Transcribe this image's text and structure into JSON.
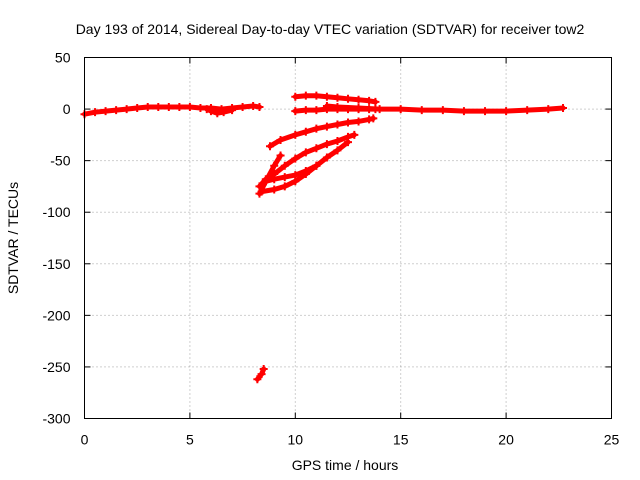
{
  "chart_data": {
    "type": "scatter",
    "title": "Day 193 of 2014, Sidereal Day-to-day VTEC variation (SDTVAR) for receiver tow2",
    "xlabel": "GPS time / hours",
    "ylabel": "SDTVAR / TECUs",
    "xlim": [
      0,
      25
    ],
    "ylim": [
      -300,
      50
    ],
    "xticks": [
      0,
      5,
      10,
      15,
      20,
      25
    ],
    "yticks": [
      -300,
      -250,
      -200,
      -150,
      -100,
      -50,
      0,
      50
    ],
    "grid": true,
    "legend": "none",
    "marker_color": "#ff0000",
    "traces": [
      {
        "x": [
          0,
          0.5,
          1.0,
          1.5,
          2.0,
          2.5,
          3.0,
          3.5,
          4.0,
          4.5,
          5.0,
          5.5,
          6.0,
          6.5,
          7.0,
          7.5,
          8.0,
          8.3
        ],
        "y": [
          -5,
          -3,
          -2,
          -1,
          0,
          1,
          2,
          2,
          2,
          2,
          2,
          1,
          1,
          0,
          1,
          2,
          3,
          2
        ]
      },
      {
        "x": [
          5.8,
          6.0,
          6.3,
          6.6,
          7.0
        ],
        "y": [
          0,
          -2,
          -4,
          -3,
          -1
        ]
      },
      {
        "x": [
          10.0,
          10.5,
          11.0,
          11.5,
          12.0,
          12.5,
          13.0,
          13.5,
          13.8
        ],
        "y": [
          12,
          13,
          13,
          12,
          11,
          10,
          9,
          8,
          7
        ]
      },
      {
        "x": [
          11.5,
          12.0,
          13.0,
          14.0,
          15.0,
          16.0,
          17.0,
          18.0,
          19.0,
          20.0,
          21.0,
          22.0,
          22.7
        ],
        "y": [
          3,
          2,
          1,
          0,
          0,
          -1,
          -1,
          -2,
          -2,
          -2,
          -1,
          0,
          1
        ]
      },
      {
        "x": [
          10.0,
          10.5,
          11.0,
          11.5,
          12.0,
          12.5,
          13.0,
          13.5,
          13.8
        ],
        "y": [
          -2,
          -1,
          -1,
          0,
          0,
          0,
          0,
          0,
          0
        ]
      },
      {
        "x": [
          8.8,
          9.3,
          10.0,
          10.5,
          11.0,
          11.5,
          12.0,
          12.5,
          13.0,
          13.5,
          13.7
        ],
        "y": [
          -36,
          -30,
          -25,
          -22,
          -19,
          -17,
          -15,
          -13,
          -12,
          -10,
          -9
        ]
      },
      {
        "x": [
          8.3,
          8.6,
          9.0,
          9.5,
          10.0,
          10.5,
          11.0,
          11.5,
          12.0,
          12.5,
          12.8
        ],
        "y": [
          -75,
          -68,
          -63,
          -55,
          -48,
          -42,
          -38,
          -34,
          -31,
          -27,
          -25
        ]
      },
      {
        "x": [
          8.4,
          9.0,
          9.5,
          10.0,
          10.5,
          11.0,
          11.5,
          12.0,
          12.5
        ],
        "y": [
          -80,
          -78,
          -75,
          -70,
          -63,
          -55,
          -47,
          -40,
          -32
        ]
      },
      {
        "x": [
          8.6,
          9.0,
          9.5,
          10.0,
          10.5,
          11.0
        ],
        "y": [
          -70,
          -68,
          -66,
          -64,
          -60,
          -55
        ]
      },
      {
        "x": [
          8.3,
          8.6,
          9.0,
          9.3
        ],
        "y": [
          -82,
          -70,
          -55,
          -45
        ]
      },
      {
        "x": [
          8.2,
          8.4,
          8.5
        ],
        "y": [
          -262,
          -257,
          -252
        ]
      }
    ]
  }
}
